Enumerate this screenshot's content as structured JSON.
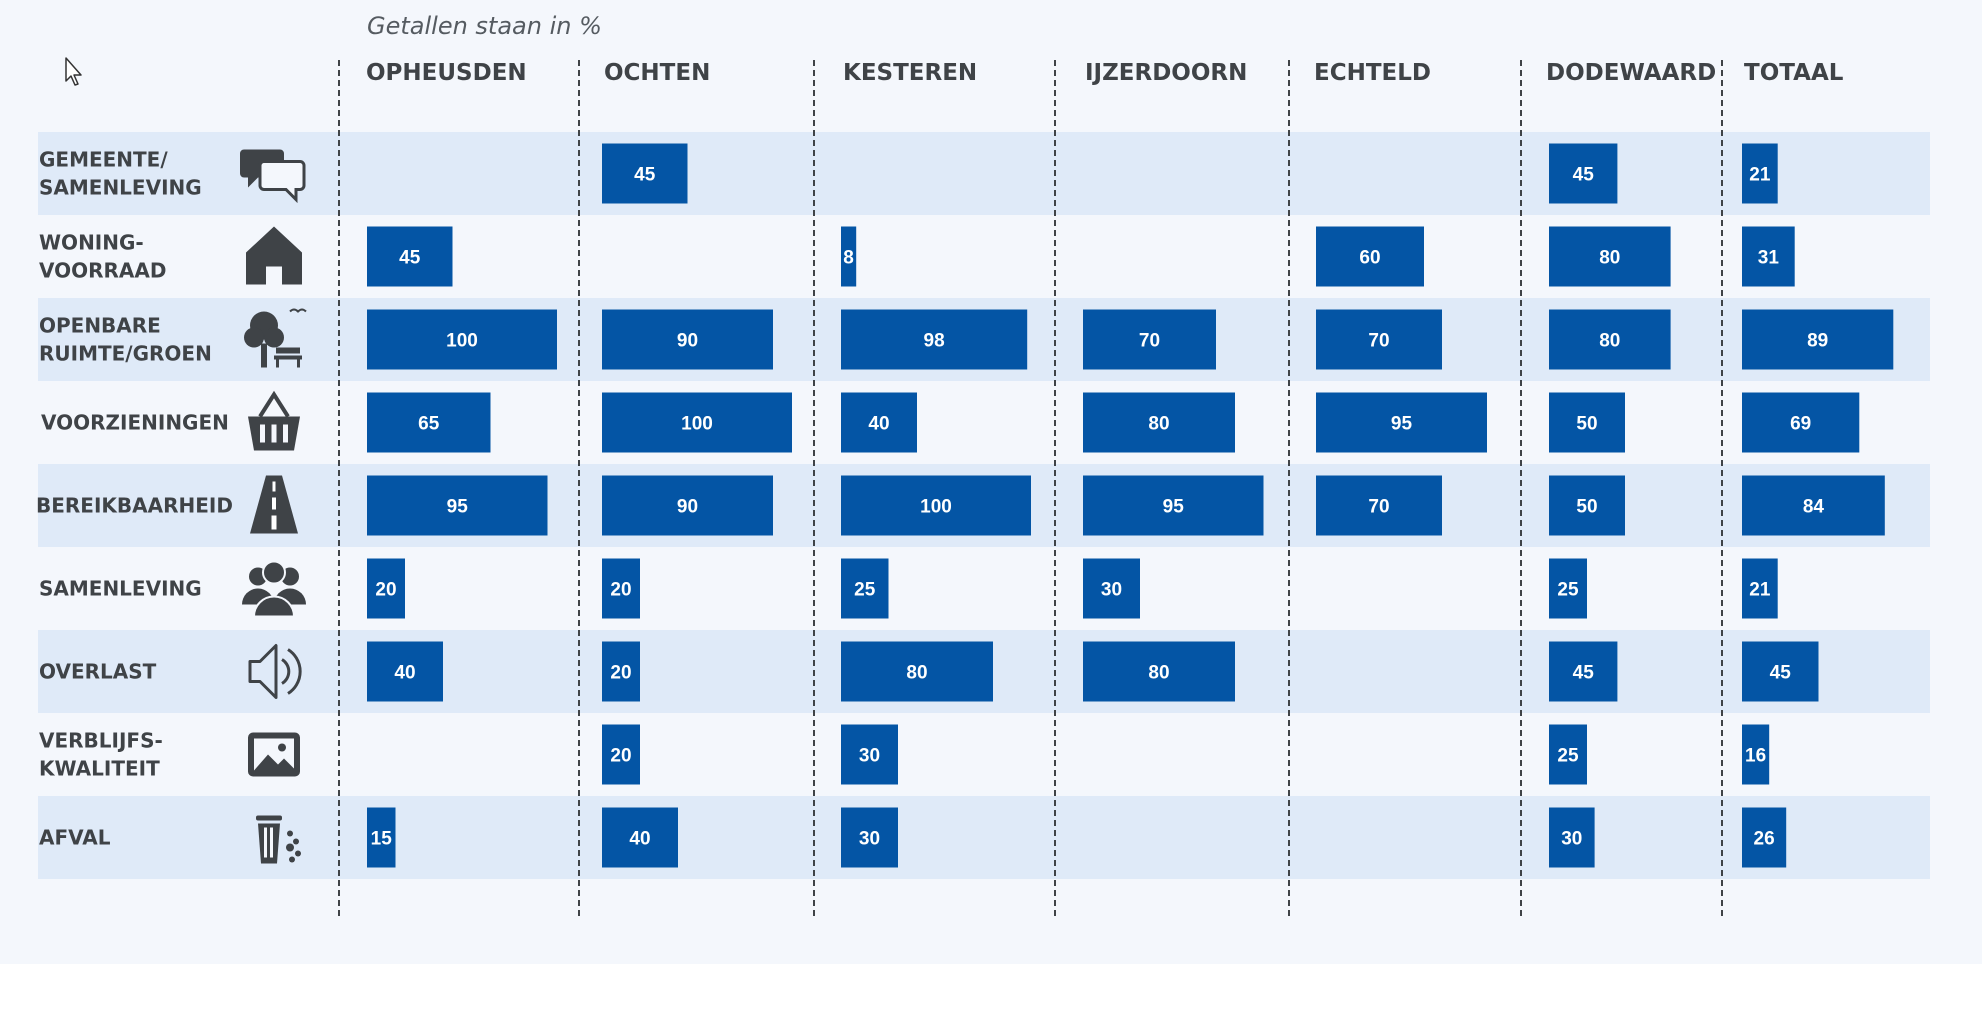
{
  "note": "Getallen staan in %",
  "chart_data": {
    "type": "bar",
    "title": "",
    "unit": "%",
    "columns": [
      "OPHEUSDEN",
      "OCHTEN",
      "KESTEREN",
      "IJZERDOORN",
      "ECHTELD",
      "DODEWAARD",
      "TOTAAL"
    ],
    "rows": [
      {
        "label": [
          "GEMEENTE/",
          "SAMENLEVING"
        ],
        "icon": "speech-bubbles-icon",
        "values": [
          null,
          45,
          null,
          null,
          null,
          45,
          21
        ]
      },
      {
        "label": [
          "WONING-",
          "VOORRAAD"
        ],
        "icon": "house-icon",
        "values": [
          45,
          null,
          8,
          null,
          60,
          80,
          31
        ]
      },
      {
        "label": [
          "OPENBARE",
          "RUIMTE/GROEN"
        ],
        "icon": "tree-bench-icon",
        "values": [
          100,
          90,
          98,
          70,
          70,
          80,
          89
        ]
      },
      {
        "label": [
          "VOORZIENINGEN"
        ],
        "icon": "shopping-basket-icon",
        "values": [
          65,
          100,
          40,
          80,
          95,
          50,
          69
        ]
      },
      {
        "label": [
          "BEREIKBAARHEID"
        ],
        "icon": "road-icon",
        "values": [
          95,
          90,
          100,
          95,
          70,
          50,
          84
        ]
      },
      {
        "label": [
          "SAMENLEVING"
        ],
        "icon": "people-group-icon",
        "values": [
          20,
          20,
          25,
          30,
          null,
          25,
          21
        ]
      },
      {
        "label": [
          "OVERLAST"
        ],
        "icon": "speaker-icon",
        "values": [
          40,
          20,
          80,
          80,
          null,
          45,
          45
        ]
      },
      {
        "label": [
          "VERBLIJFS-",
          "KWALITEIT"
        ],
        "icon": "picture-icon",
        "values": [
          null,
          20,
          30,
          null,
          null,
          25,
          16
        ]
      },
      {
        "label": [
          "AFVAL"
        ],
        "icon": "trash-can-icon",
        "values": [
          15,
          40,
          30,
          null,
          null,
          30,
          26
        ]
      }
    ],
    "xlim": [
      0,
      100
    ],
    "colors": {
      "bar": "#0455a5",
      "band": "#dfeaf8",
      "background": "#f4f7fc",
      "text": "#3f4347"
    }
  }
}
